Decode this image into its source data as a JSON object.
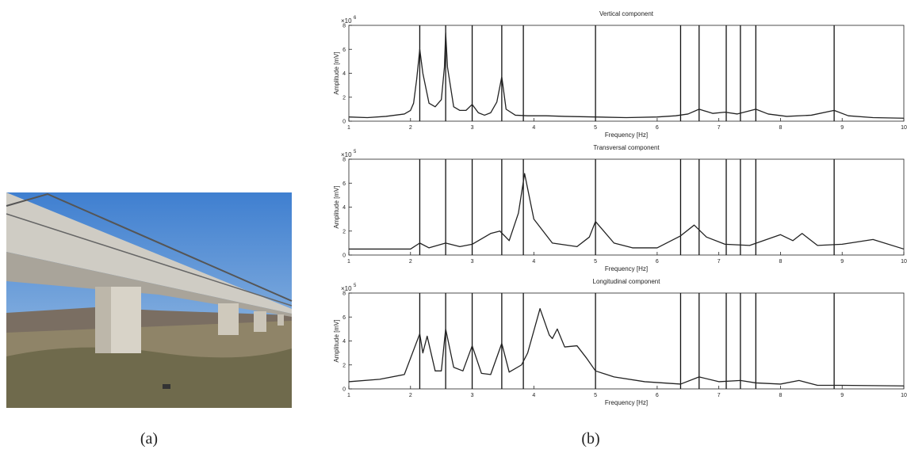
{
  "captions": [
    "(a)",
    "(b)"
  ],
  "chart_data": [
    {
      "type": "line",
      "title": "Vertical component",
      "xlabel": "Frequency [Hz]",
      "ylabel": "Amplitude [mV]",
      "y_scale_label": {
        "base": "×10",
        "exponent": "6"
      },
      "xlim": [
        1,
        10
      ],
      "xticks": [
        1,
        2,
        3,
        4,
        5,
        6,
        7,
        8,
        9,
        10
      ],
      "ylim": [
        0,
        8
      ],
      "yticks": [
        0,
        2,
        4,
        6,
        8
      ],
      "vlines": [
        2.15,
        2.57,
        3.0,
        3.48,
        3.83,
        5.0,
        6.38,
        6.68,
        7.12,
        7.35,
        7.6,
        8.87
      ],
      "series": [
        {
          "color": "#222222",
          "x": [
            1,
            1.3,
            1.6,
            1.9,
            2.0,
            2.05,
            2.1,
            2.15,
            2.2,
            2.3,
            2.4,
            2.5,
            2.55,
            2.57,
            2.6,
            2.7,
            2.8,
            2.9,
            3.0,
            3.1,
            3.2,
            3.3,
            3.4,
            3.48,
            3.55,
            3.7,
            3.9,
            4.2,
            4.5,
            5,
            5.5,
            6,
            6.3,
            6.5,
            6.68,
            6.9,
            7.1,
            7.3,
            7.45,
            7.6,
            7.8,
            8.1,
            8.5,
            8.87,
            9.1,
            9.5,
            10
          ],
          "values": [
            0.35,
            0.3,
            0.4,
            0.6,
            0.9,
            1.5,
            3.5,
            6.0,
            4.0,
            1.5,
            1.2,
            1.8,
            4.5,
            7.4,
            4.5,
            1.2,
            0.9,
            0.9,
            1.4,
            0.7,
            0.5,
            0.7,
            1.6,
            3.7,
            1.0,
            0.5,
            0.45,
            0.45,
            0.4,
            0.35,
            0.3,
            0.35,
            0.45,
            0.6,
            1.0,
            0.65,
            0.75,
            0.6,
            0.8,
            1.0,
            0.6,
            0.4,
            0.5,
            0.9,
            0.45,
            0.3,
            0.25
          ]
        }
      ]
    },
    {
      "type": "line",
      "title": "Transversal component",
      "xlabel": "Frequency [Hz]",
      "ylabel": "Amplitude [mV]",
      "y_scale_label": {
        "base": "×10",
        "exponent": "5"
      },
      "xlim": [
        1,
        10
      ],
      "xticks": [
        1,
        2,
        3,
        4,
        5,
        6,
        7,
        8,
        9,
        10
      ],
      "ylim": [
        0,
        8
      ],
      "yticks": [
        0,
        2,
        4,
        6,
        8
      ],
      "vlines": [
        2.15,
        2.57,
        3.0,
        3.48,
        3.83,
        5.0,
        6.38,
        6.68,
        7.12,
        7.35,
        7.6,
        8.87
      ],
      "series": [
        {
          "color": "#222222",
          "x": [
            1,
            1.5,
            2.0,
            2.15,
            2.3,
            2.57,
            2.8,
            3.0,
            3.3,
            3.45,
            3.6,
            3.75,
            3.85,
            4.0,
            4.3,
            4.7,
            4.9,
            5.0,
            5.3,
            5.6,
            6.0,
            6.38,
            6.6,
            6.8,
            7.1,
            7.5,
            8.0,
            8.2,
            8.35,
            8.6,
            9.0,
            9.5,
            10
          ],
          "values": [
            0.5,
            0.5,
            0.5,
            1.0,
            0.6,
            1.0,
            0.7,
            0.9,
            1.8,
            2.0,
            1.2,
            3.5,
            6.8,
            3.0,
            1.0,
            0.7,
            1.5,
            2.8,
            1.0,
            0.6,
            0.6,
            1.6,
            2.5,
            1.5,
            0.9,
            0.8,
            1.7,
            1.2,
            1.8,
            0.8,
            0.9,
            1.3,
            0.5
          ]
        }
      ]
    },
    {
      "type": "line",
      "title": "Longitudinal component",
      "xlabel": "Frequency [Hz]",
      "ylabel": "Amplitude [mV]",
      "y_scale_label": {
        "base": "×10",
        "exponent": "5"
      },
      "xlim": [
        1,
        10
      ],
      "xticks": [
        1,
        2,
        3,
        4,
        5,
        6,
        7,
        8,
        9,
        10
      ],
      "ylim": [
        0,
        8
      ],
      "yticks": [
        0,
        2,
        4,
        6,
        8
      ],
      "vlines": [
        2.15,
        2.57,
        3.0,
        3.48,
        3.83,
        5.0,
        6.38,
        6.68,
        7.12,
        7.35,
        7.6,
        8.87
      ],
      "series": [
        {
          "color": "#222222",
          "x": [
            1,
            1.5,
            1.9,
            2.15,
            2.2,
            2.27,
            2.4,
            2.5,
            2.57,
            2.7,
            2.85,
            3.0,
            3.15,
            3.3,
            3.48,
            3.6,
            3.8,
            3.9,
            4.1,
            4.25,
            4.3,
            4.38,
            4.5,
            4.7,
            4.85,
            5.0,
            5.3,
            5.8,
            6.38,
            6.68,
            7.0,
            7.35,
            7.6,
            8.0,
            8.3,
            8.6,
            9.0,
            10
          ],
          "values": [
            0.6,
            0.8,
            1.2,
            4.6,
            3.0,
            4.4,
            1.5,
            1.5,
            5.0,
            1.8,
            1.5,
            3.6,
            1.3,
            1.2,
            3.8,
            1.4,
            2.0,
            3.0,
            6.7,
            4.5,
            4.2,
            5.0,
            3.5,
            3.6,
            2.6,
            1.5,
            1.0,
            0.6,
            0.4,
            1.0,
            0.6,
            0.7,
            0.5,
            0.4,
            0.7,
            0.3,
            0.3,
            0.25
          ]
        }
      ]
    }
  ]
}
